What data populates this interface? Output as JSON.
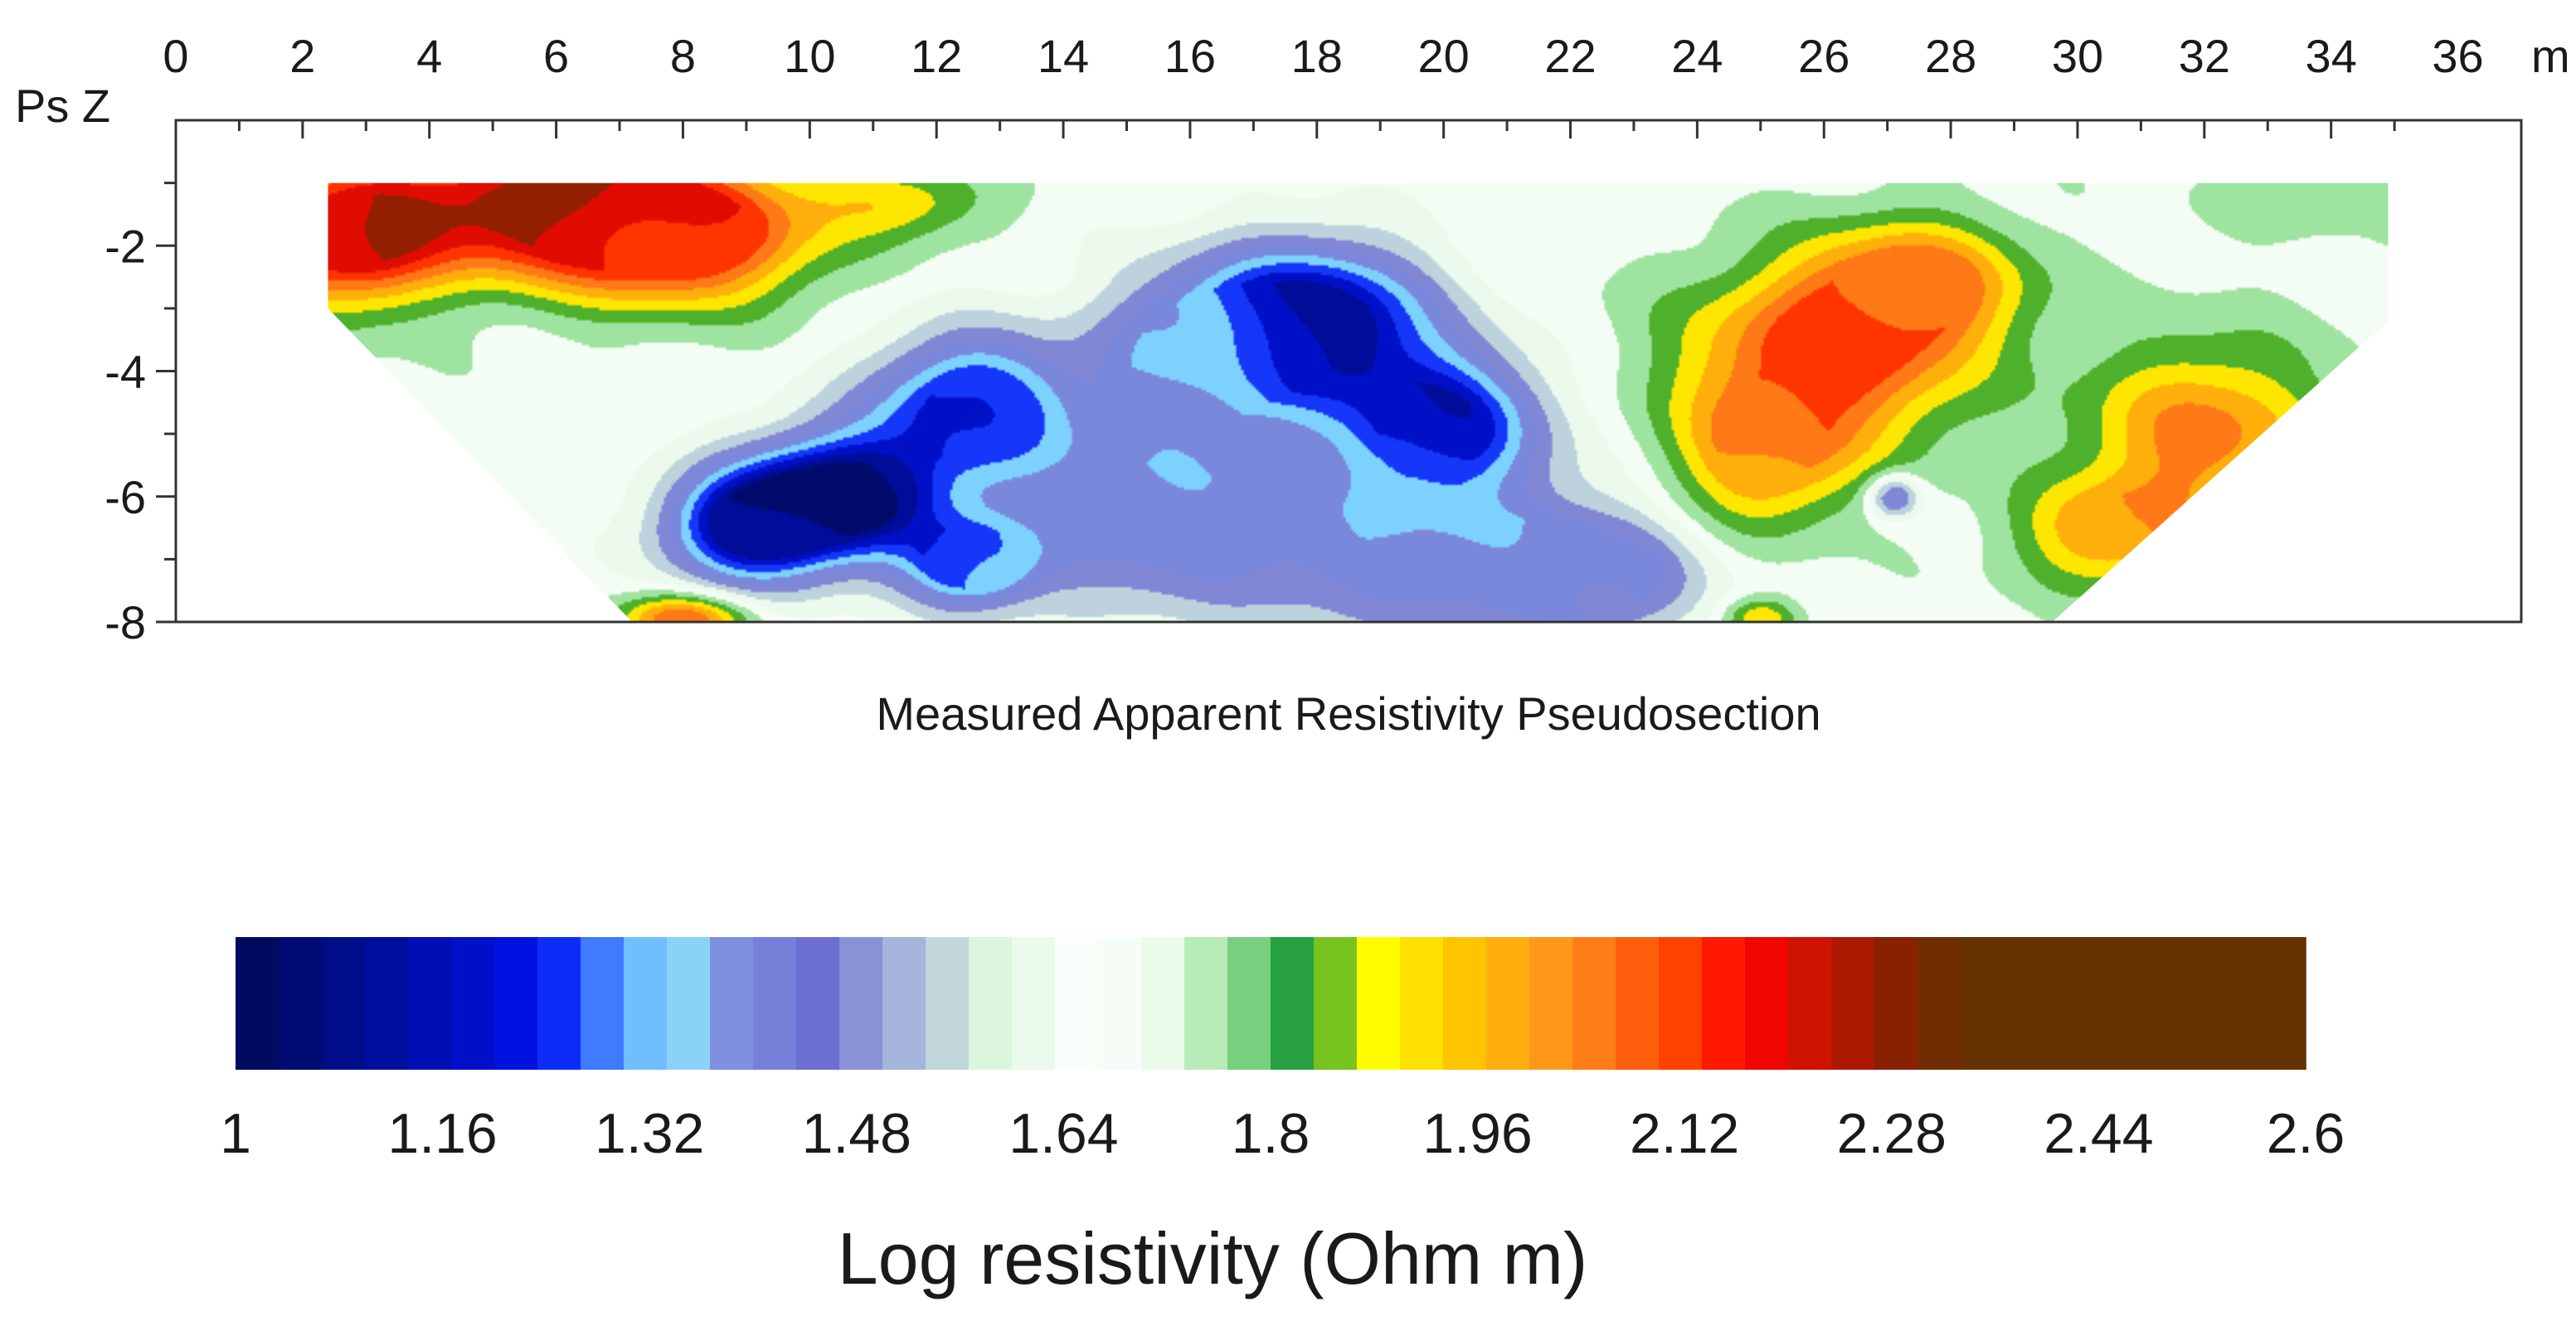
{
  "chart_data": {
    "type": "heatmap",
    "title": "Measured Apparent Resistivity Pseudosection",
    "xlabel": "m",
    "ylabel": "Ps Z",
    "x_range": [
      0,
      37
    ],
    "y_range": [
      -8,
      0
    ],
    "x_ticks": [
      "0",
      "2",
      "4",
      "6",
      "8",
      "10",
      "12",
      "14",
      "16",
      "18",
      "20",
      "22",
      "24",
      "26",
      "28",
      "30",
      "32",
      "34",
      "36"
    ],
    "y_ticks": [
      "-2",
      "-4",
      "-6",
      "-8"
    ],
    "x_minor_step": 1,
    "y_minor_step": 1,
    "data_extent": {
      "top": -1,
      "bottom": -8,
      "top_left_x": 2.4,
      "top_right_x": 34.9,
      "bottom_left_x": 7.2,
      "bottom_right_x": 29.6,
      "left_vertical_to": -3,
      "right_vertical_to": -3.2
    },
    "background_value": 1.7,
    "anomalies": [
      {
        "label": "high near surface",
        "x": 6.0,
        "z": -1.4,
        "value": 2.3,
        "sx": 2.8,
        "sz": 1.0
      },
      {
        "label": "high near surface",
        "x": 2.6,
        "z": -1.9,
        "value": 2.2,
        "sx": 1.3,
        "sz": 1.0
      },
      {
        "label": "moderate",
        "x": 8.0,
        "z": -2.0,
        "value": 2.05,
        "sx": 1.8,
        "sz": 0.9
      },
      {
        "label": "moderate",
        "x": 11.5,
        "z": -1.3,
        "value": 1.9,
        "sx": 1.2,
        "sz": 0.5
      },
      {
        "label": "low",
        "x": 10.5,
        "z": -6.0,
        "value": 1.0,
        "sx": 1.4,
        "sz": 0.9
      },
      {
        "label": "low",
        "x": 9.0,
        "z": -6.5,
        "value": 1.12,
        "sx": 1.2,
        "sz": 0.8
      },
      {
        "label": "low",
        "x": 12.5,
        "z": -4.5,
        "value": 1.2,
        "sx": 1.4,
        "sz": 1.0
      },
      {
        "label": "low",
        "x": 12.5,
        "z": -7.1,
        "value": 1.25,
        "sx": 0.9,
        "sz": 0.6
      },
      {
        "label": "low",
        "x": 18.0,
        "z": -3.2,
        "value": 1.05,
        "sx": 1.6,
        "sz": 1.1
      },
      {
        "label": "low",
        "x": 20.0,
        "z": -4.8,
        "value": 1.15,
        "sx": 1.4,
        "sz": 1.0
      },
      {
        "label": "low-moderate",
        "x": 15.5,
        "z": -6.2,
        "value": 1.38,
        "sx": 2.8,
        "sz": 1.6
      },
      {
        "label": "low-moderate",
        "x": 20.5,
        "z": -7.0,
        "value": 1.38,
        "sx": 2.6,
        "sz": 1.2
      },
      {
        "label": "low-moderate",
        "x": 16.0,
        "z": -3.6,
        "value": 1.42,
        "sx": 1.5,
        "sz": 1.2
      },
      {
        "label": "low-moderate",
        "x": 22.5,
        "z": -7.3,
        "value": 1.45,
        "sx": 1.2,
        "sz": 0.8
      },
      {
        "label": "high",
        "x": 26.0,
        "z": -3.8,
        "value": 2.15,
        "sx": 2.0,
        "sz": 1.3
      },
      {
        "label": "high",
        "x": 27.5,
        "z": -2.6,
        "value": 2.05,
        "sx": 1.5,
        "sz": 0.9
      },
      {
        "label": "high",
        "x": 25.0,
        "z": -5.5,
        "value": 2.0,
        "sx": 1.3,
        "sz": 1.0
      },
      {
        "label": "high",
        "x": 32.0,
        "z": -5.0,
        "value": 2.05,
        "sx": 1.7,
        "sz": 1.3
      },
      {
        "label": "high",
        "x": 30.5,
        "z": -6.6,
        "value": 2.0,
        "sx": 1.3,
        "sz": 0.8
      },
      {
        "label": "small low",
        "x": 27.1,
        "z": -6.0,
        "value": 1.35,
        "sx": 0.35,
        "sz": 0.3
      },
      {
        "label": "moderate bottom",
        "x": 8.0,
        "z": -7.95,
        "value": 2.1,
        "sx": 0.9,
        "sz": 0.35
      },
      {
        "label": "moderate bottom",
        "x": 25.0,
        "z": -7.95,
        "value": 1.95,
        "sx": 0.5,
        "sz": 0.3
      },
      {
        "label": "moderate top",
        "x": 33.5,
        "z": -1.2,
        "value": 1.8,
        "sx": 1.2,
        "sz": 0.5
      }
    ],
    "colorbar": {
      "label": "Log resistivity (Ohm m)",
      "min": 1,
      "max": 2.6,
      "ticks": [
        "1",
        "1.16",
        "1.32",
        "1.48",
        "1.64",
        "1.8",
        "1.96",
        "2.12",
        "2.28",
        "2.44",
        "2.6"
      ],
      "stops": [
        {
          "v": 1.0,
          "c": "#000a55"
        },
        {
          "v": 1.19,
          "c": "#0010cc"
        },
        {
          "v": 1.24,
          "c": "#0014f4"
        },
        {
          "v": 1.27,
          "c": "#2a5cff"
        },
        {
          "v": 1.3,
          "c": "#5aa0ff"
        },
        {
          "v": 1.34,
          "c": "#8ee8ff"
        },
        {
          "v": 1.38,
          "c": "#7f92e0"
        },
        {
          "v": 1.45,
          "c": "#6d6fd2"
        },
        {
          "v": 1.52,
          "c": "#a8b8dc"
        },
        {
          "v": 1.58,
          "c": "#d9f6dc"
        },
        {
          "v": 1.66,
          "c": "#ffffff"
        },
        {
          "v": 1.72,
          "c": "#e9fbe9"
        },
        {
          "v": 1.76,
          "c": "#a6e6a6"
        },
        {
          "v": 1.8,
          "c": "#55c060"
        },
        {
          "v": 1.82,
          "c": "#1e9a3a"
        },
        {
          "v": 1.85,
          "c": "#78c41e"
        },
        {
          "v": 1.88,
          "c": "#ffff00"
        },
        {
          "v": 1.95,
          "c": "#ffc400"
        },
        {
          "v": 2.03,
          "c": "#ff8f1e"
        },
        {
          "v": 2.12,
          "c": "#ff3e00"
        },
        {
          "v": 2.17,
          "c": "#ff0000"
        },
        {
          "v": 2.22,
          "c": "#cc1400"
        },
        {
          "v": 2.28,
          "c": "#8a2000"
        },
        {
          "v": 2.33,
          "c": "#663300"
        },
        {
          "v": 2.6,
          "c": "#663300"
        }
      ]
    }
  }
}
